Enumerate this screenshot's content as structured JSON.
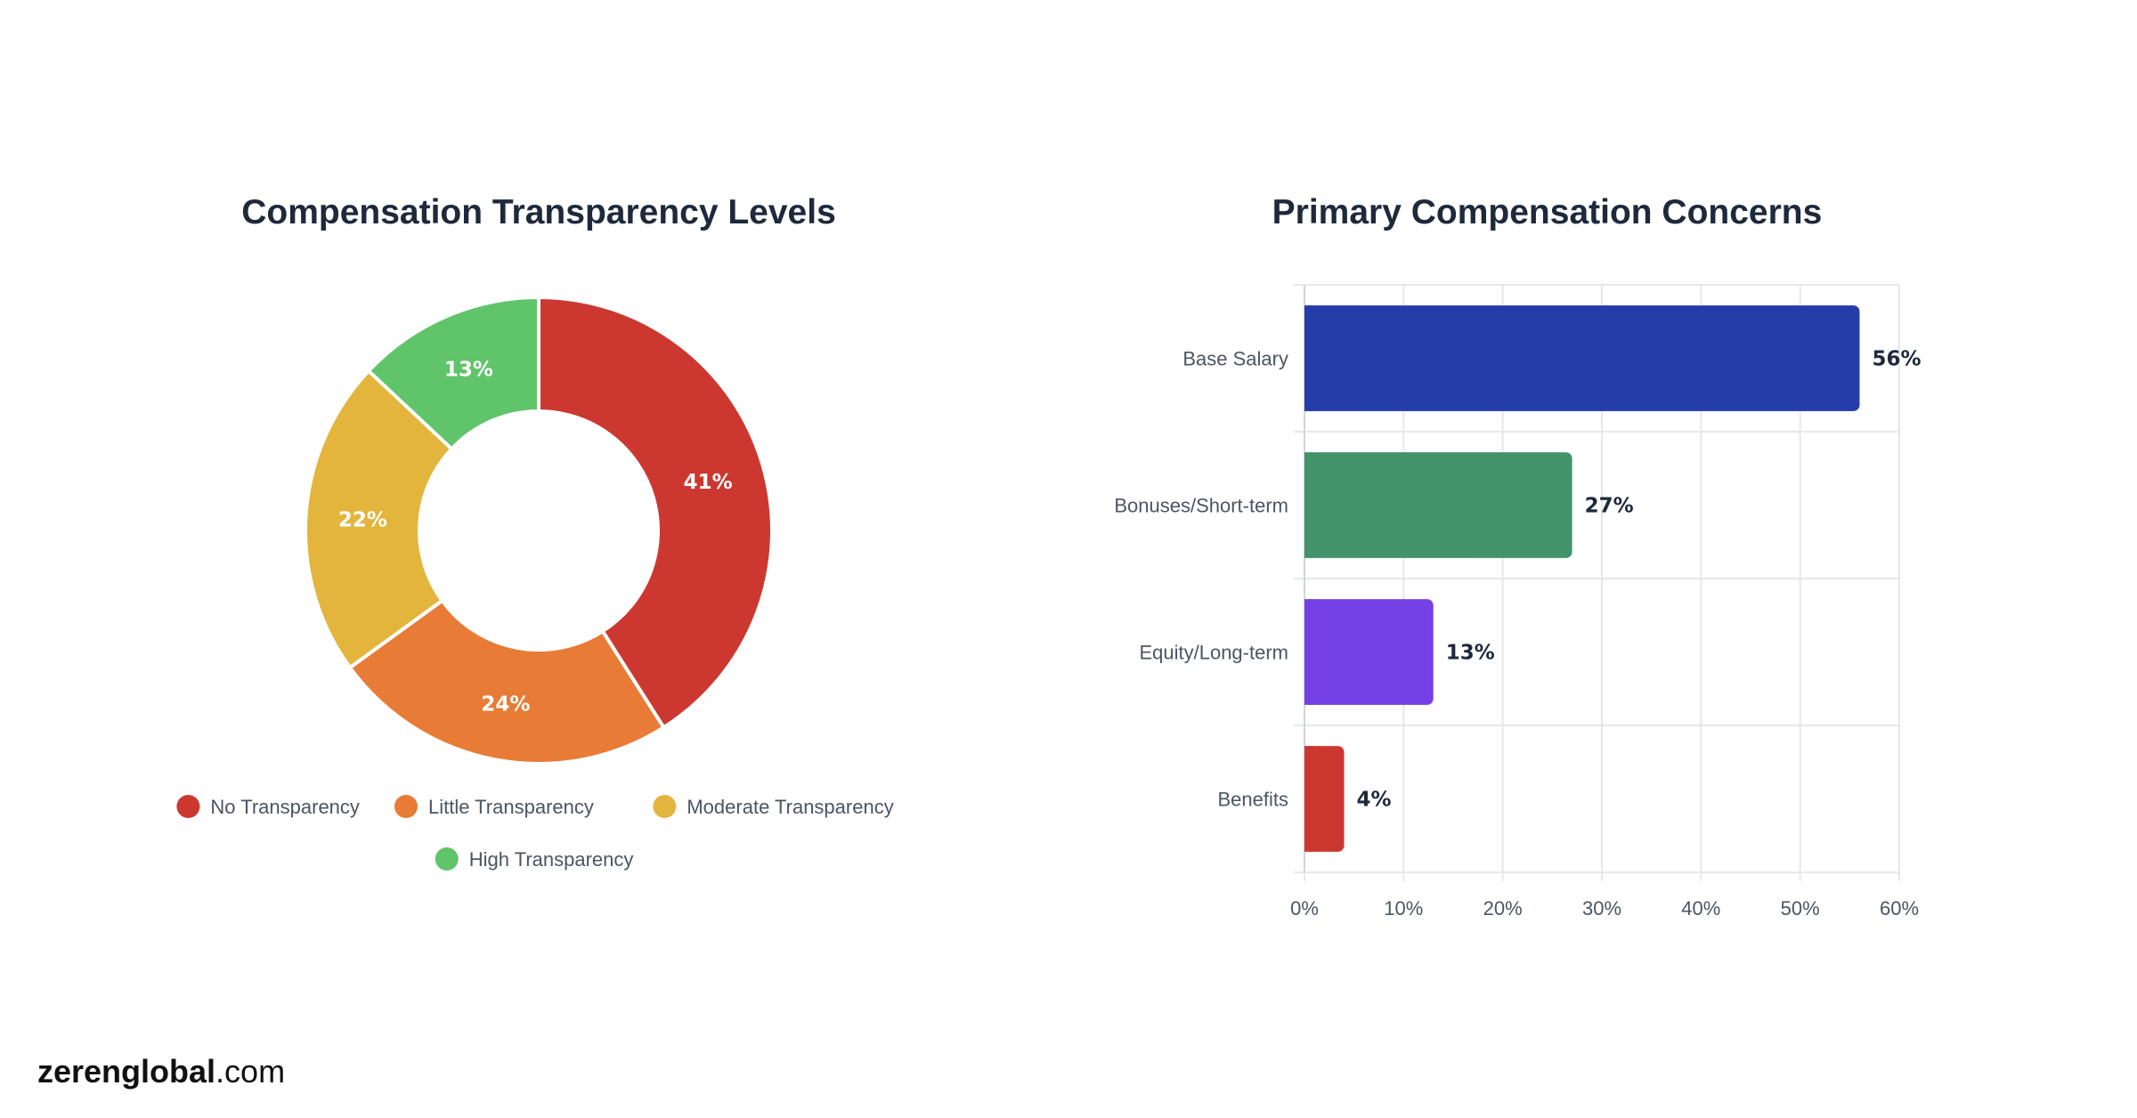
{
  "brand": {
    "name": "zerenglobal",
    "suffix": ".com"
  },
  "chart_data": [
    {
      "type": "pie",
      "variant": "donut",
      "title": "Compensation Transparency Levels",
      "legend_position": "bottom",
      "slices": [
        {
          "label": "No Transparency",
          "value": 41,
          "display": "41%",
          "color": "#cc3830"
        },
        {
          "label": "Little Transparency",
          "value": 24,
          "display": "24%",
          "color": "#e87b35"
        },
        {
          "label": "Moderate Transparency",
          "value": 22,
          "display": "22%",
          "color": "#e3b53c"
        },
        {
          "label": "High Transparency",
          "value": 13,
          "display": "13%",
          "color": "#5fc46a"
        }
      ]
    },
    {
      "type": "bar",
      "orientation": "horizontal",
      "title": "Primary Compensation Concerns",
      "categories": [
        "Base Salary",
        "Bonuses/Short-term",
        "Equity/Long-term",
        "Benefits"
      ],
      "values": [
        56,
        27,
        13,
        4
      ],
      "value_labels": [
        "56%",
        "27%",
        "13%",
        "4%"
      ],
      "colors": [
        "#253da8",
        "#43936b",
        "#7540e6",
        "#cc3830"
      ],
      "xlim": [
        0,
        60
      ],
      "x_ticks": [
        0,
        10,
        20,
        30,
        40,
        50,
        60
      ],
      "x_tick_labels": [
        "0%",
        "10%",
        "20%",
        "30%",
        "40%",
        "50%",
        "60%"
      ],
      "grid": true,
      "legend": false
    }
  ]
}
